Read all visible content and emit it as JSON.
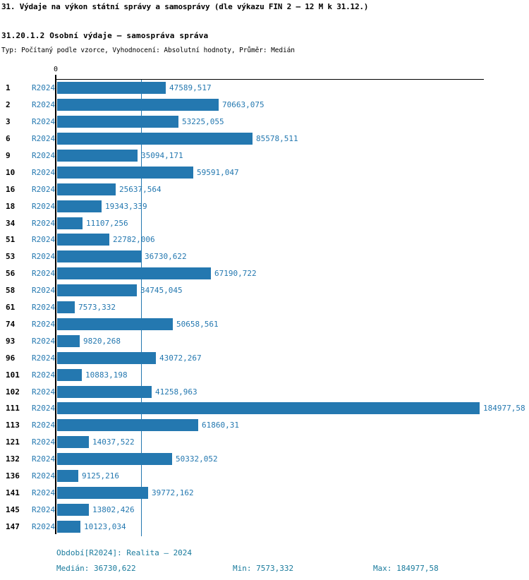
{
  "header": {
    "title": "31. Výdaje na výkon státní správy a samosprávy (dle výkazu FIN 2 – 12 M k 31.12.)",
    "subtitle": "31.20.1.2 Osobní výdaje – samospráva správa",
    "meta": "Typ: Počítaný podle vzorce, Vyhodnocení: Absolutní hodnoty, Průměr: Medián"
  },
  "chart_data": {
    "type": "bar",
    "orientation": "horizontal",
    "series_label": "R2024",
    "axis_zero_label": "0",
    "categories": [
      "1",
      "2",
      "3",
      "6",
      "9",
      "10",
      "16",
      "18",
      "34",
      "51",
      "53",
      "56",
      "58",
      "61",
      "74",
      "93",
      "96",
      "101",
      "102",
      "111",
      "113",
      "121",
      "132",
      "136",
      "141",
      "145",
      "147"
    ],
    "values": [
      47589.517,
      70663.075,
      53225.055,
      85578.511,
      35094.171,
      59591.047,
      25637.564,
      19343.339,
      11107.256,
      22782.006,
      36730.622,
      67190.722,
      34745.045,
      7573.332,
      50658.561,
      9820.268,
      43072.267,
      10883.198,
      41258.963,
      184977.58,
      61860.31,
      14037.522,
      50332.052,
      9125.216,
      39772.162,
      13802.426,
      10123.034
    ],
    "value_labels": [
      "47589,517",
      "70663,075",
      "53225,055",
      "85578,511",
      "35094,171",
      "59591,047",
      "25637,564",
      "19343,339",
      "11107,256",
      "22782,006",
      "36730,622",
      "67190,722",
      "34745,045",
      "7573,332",
      "50658,561",
      "9820,268",
      "43072,267",
      "10883,198",
      "41258,963",
      "184977,58",
      "61860,31",
      "14037,522",
      "50332,052",
      "9125,216",
      "39772,162",
      "13802,426",
      "10123,034"
    ],
    "median_value": 36730.622,
    "xlim": [
      0,
      186800
    ],
    "grid": "median-line-only",
    "bar_color": "#2478b0",
    "label_color": "#2478b0",
    "median_line_color": "#2478b0",
    "axis_color": "#000000"
  },
  "footer": {
    "period": "Období[R2024]: Realita – 2024",
    "median": "Medián: 36730,622",
    "min": "Min: 7573,332",
    "max": "Max: 184977,58",
    "text_color": "#1a7b9d"
  }
}
